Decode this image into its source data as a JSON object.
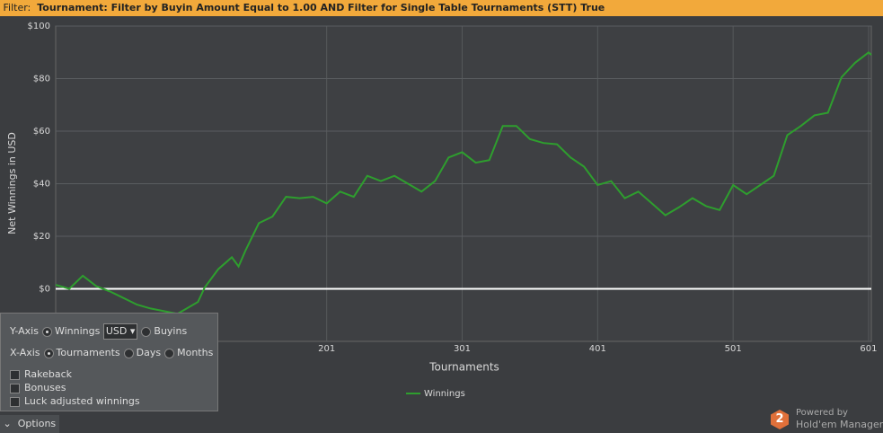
{
  "filter": {
    "label": "Filter:",
    "text": "Tournament: Filter by Buyin Amount Equal to 1.00 AND Filter for Single Table Tournaments (STT) True"
  },
  "chart_data": {
    "type": "line",
    "x_label": "Tournaments",
    "y_label": "Net Winnings in USD",
    "x": [
      1,
      11,
      21,
      31,
      41,
      51,
      61,
      71,
      81,
      91,
      106,
      111,
      121,
      131,
      136,
      141,
      151,
      161,
      171,
      181,
      191,
      201,
      211,
      221,
      231,
      241,
      251,
      261,
      271,
      281,
      291,
      301,
      311,
      321,
      331,
      341,
      351,
      361,
      371,
      381,
      391,
      401,
      411,
      421,
      431,
      441,
      451,
      461,
      471,
      481,
      491,
      501,
      511,
      521,
      531,
      541,
      551,
      561,
      571,
      581,
      591,
      601,
      603
    ],
    "series": [
      {
        "name": "Winnings",
        "color": "#2e9e2e",
        "values": [
          1.5,
          0,
          5,
          1,
          -1,
          -3.5,
          -6,
          -7.5,
          -8.5,
          -9.5,
          -5,
          0.5,
          7.5,
          12,
          8.5,
          14.5,
          25,
          27.5,
          35,
          34.5,
          35,
          32.5,
          37,
          35,
          43,
          41,
          43,
          40,
          37,
          41,
          50,
          52,
          48,
          49,
          62,
          62,
          57,
          55.5,
          55,
          50,
          46.5,
          39.5,
          41,
          34.5,
          37,
          32.5,
          28,
          31,
          34.5,
          31.5,
          30,
          39.5,
          36,
          39.5,
          43,
          58.5,
          62,
          66,
          67,
          80.5,
          86,
          90,
          89
        ]
      }
    ],
    "xlim": [
      1,
      603
    ],
    "xticks": [
      201,
      301,
      401,
      501,
      601
    ],
    "ylim": [
      -20,
      100
    ],
    "yticks": [
      {
        "value": 0,
        "label": "$0"
      },
      {
        "value": 20,
        "label": "$20"
      },
      {
        "value": 40,
        "label": "$40"
      },
      {
        "value": 60,
        "label": "$60"
      },
      {
        "value": 80,
        "label": "$80"
      },
      {
        "value": 100,
        "label": "$100"
      }
    ],
    "grid": true
  },
  "options_panel": {
    "y_axis": "Y-Axis",
    "winnings": "Winnings",
    "currency": "USD",
    "buyins": "Buyins",
    "x_axis": "X-Axis",
    "tournaments": "Tournaments",
    "days": "Days",
    "months": "Months",
    "rakeback": "Rakeback",
    "bonuses": "Bonuses",
    "luck": "Luck adjusted winnings",
    "tab": "Options"
  },
  "branding": {
    "icon": "2",
    "powered": "Powered by",
    "product": "Hold'em Manager"
  }
}
